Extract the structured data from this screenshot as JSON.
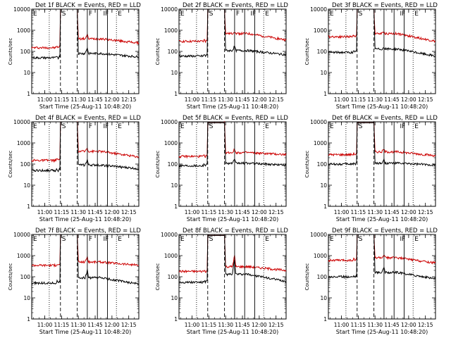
{
  "chart_data": [
    {
      "type": "line",
      "title": "Det 1f BLACK = Events, RED = LLD",
      "xlabel": "Start Time (25-Aug-11 10:48:20)",
      "ylabel": "Counts/sec",
      "xlim": [
        "10:48:20",
        "12:24"
      ],
      "ylim": [
        1,
        10000
      ],
      "yscale": "log",
      "x_ticks": [
        "11:00",
        "11:15",
        "11:30",
        "11:45",
        "12:00",
        "12:15"
      ],
      "y_ticks": [
        "1",
        "10",
        "100",
        "1000",
        "10000"
      ],
      "markers": [
        {
          "time": "11:04",
          "label": "",
          "style": "dotted"
        },
        {
          "time": "11:14",
          "label": "S",
          "style": "dashed"
        },
        {
          "time": "11:29",
          "label": "",
          "style": "dashed"
        },
        {
          "time": "11:38",
          "label": "F",
          "style": "solid"
        },
        {
          "time": "11:47",
          "label": "",
          "style": "solid"
        },
        {
          "time": "11:56",
          "label": "E",
          "style": "solid"
        },
        {
          "time": "12:04",
          "label": "",
          "style": "dotted"
        }
      ],
      "corner_labels": [
        "E",
        "S",
        "F",
        "IF",
        "E"
      ],
      "series": [
        {
          "name": "LLD",
          "color": "#cc0000",
          "levels": {
            "base": 150,
            "pre": 180,
            "sat": 10000,
            "post": 400,
            "end": 250,
            "spike": 600
          }
        },
        {
          "name": "Events",
          "color": "#000000",
          "levels": {
            "base": 50,
            "pre": 60,
            "sat": 10000,
            "post": 80,
            "end": 55,
            "spike": 150
          }
        }
      ]
    },
    {
      "type": "line",
      "title": "Det 2f BLACK = Events, RED = LLD",
      "xlabel": "Start Time (25-Aug-11 10:48:20)",
      "ylabel": "Counts/sec",
      "xlim": [
        "10:48:20",
        "12:24"
      ],
      "ylim": [
        1,
        10000
      ],
      "yscale": "log",
      "x_ticks": [
        "11:00",
        "11:15",
        "11:30",
        "11:45",
        "12:00",
        "12:15"
      ],
      "y_ticks": [
        "1",
        "10",
        "100",
        "1000",
        "10000"
      ],
      "markers": [
        {
          "time": "11:04",
          "label": "",
          "style": "dotted"
        },
        {
          "time": "11:14",
          "label": "S",
          "style": "dashed"
        },
        {
          "time": "11:29",
          "label": "",
          "style": "dashed"
        },
        {
          "time": "11:38",
          "label": "F",
          "style": "solid"
        },
        {
          "time": "11:47",
          "label": "",
          "style": "solid"
        },
        {
          "time": "11:56",
          "label": "E",
          "style": "solid"
        },
        {
          "time": "12:04",
          "label": "",
          "style": "dotted"
        }
      ],
      "corner_labels": [
        "E",
        "S",
        "F",
        "IF",
        "E"
      ],
      "series": [
        {
          "name": "LLD",
          "color": "#cc0000",
          "levels": {
            "base": 300,
            "pre": 350,
            "sat": 10000,
            "post": 700,
            "end": 350,
            "spike": 900
          }
        },
        {
          "name": "Events",
          "color": "#000000",
          "levels": {
            "base": 60,
            "pre": 70,
            "sat": 10000,
            "post": 110,
            "end": 70,
            "spike": 180
          }
        }
      ]
    },
    {
      "type": "line",
      "title": "Det 3f BLACK = Events, RED = LLD",
      "xlabel": "Start Time (25-Aug-11 10:48:20)",
      "ylabel": "Counts/sec",
      "xlim": [
        "10:48:20",
        "12:24"
      ],
      "ylim": [
        1,
        10000
      ],
      "yscale": "log",
      "x_ticks": [
        "11:00",
        "11:15",
        "11:30",
        "11:45",
        "12:00",
        "12:15"
      ],
      "y_ticks": [
        "1",
        "10",
        "100",
        "1000",
        "10000"
      ],
      "markers": [
        {
          "time": "11:04",
          "label": "",
          "style": "dotted"
        },
        {
          "time": "11:14",
          "label": "S",
          "style": "dashed"
        },
        {
          "time": "11:29",
          "label": "",
          "style": "dashed"
        },
        {
          "time": "11:38",
          "label": "",
          "style": "solid"
        },
        {
          "time": "11:47",
          "label": "",
          "style": "solid"
        },
        {
          "time": "11:56",
          "label": "E",
          "style": "solid"
        },
        {
          "time": "12:04",
          "label": "",
          "style": "dotted"
        }
      ],
      "corner_labels": [
        "E",
        "S",
        "",
        "IF",
        "E"
      ],
      "series": [
        {
          "name": "LLD",
          "color": "#cc0000",
          "levels": {
            "base": 500,
            "pre": 600,
            "sat": 10000,
            "post": 700,
            "end": 300,
            "spike": 800
          }
        },
        {
          "name": "Events",
          "color": "#000000",
          "levels": {
            "base": 90,
            "pre": 100,
            "sat": 10000,
            "post": 130,
            "end": 60,
            "spike": 150
          }
        }
      ]
    },
    {
      "type": "line",
      "title": "Det 4f BLACK = Events, RED = LLD",
      "xlabel": "Start Time (25-Aug-11 10:48:20)",
      "ylabel": "Counts/sec",
      "xlim": [
        "10:48:20",
        "12:24"
      ],
      "ylim": [
        1,
        10000
      ],
      "yscale": "log",
      "x_ticks": [
        "11:00",
        "11:15",
        "11:30",
        "11:45",
        "12:00",
        "12:15"
      ],
      "y_ticks": [
        "1",
        "10",
        "100",
        "1000",
        "10000"
      ],
      "markers": [
        {
          "time": "11:04",
          "label": "",
          "style": "dotted"
        },
        {
          "time": "11:14",
          "label": "S",
          "style": "dashed"
        },
        {
          "time": "11:29",
          "label": "",
          "style": "dashed"
        },
        {
          "time": "11:38",
          "label": "F",
          "style": "solid"
        },
        {
          "time": "11:47",
          "label": "",
          "style": "solid"
        },
        {
          "time": "11:56",
          "label": "E",
          "style": "solid"
        },
        {
          "time": "12:04",
          "label": "",
          "style": "dotted"
        }
      ],
      "corner_labels": [
        "E",
        "S",
        "F",
        "IF",
        "E"
      ],
      "series": [
        {
          "name": "LLD",
          "color": "#cc0000",
          "levels": {
            "base": 150,
            "pre": 180,
            "sat": 10000,
            "post": 400,
            "end": 220,
            "spike": 600
          }
        },
        {
          "name": "Events",
          "color": "#000000",
          "levels": {
            "base": 50,
            "pre": 60,
            "sat": 10000,
            "post": 90,
            "end": 60,
            "spike": 160
          }
        }
      ]
    },
    {
      "type": "line",
      "title": "Det 5f BLACK = Events, RED = LLD",
      "xlabel": "Start Time (25-Aug-11 10:48:20)",
      "ylabel": "Counts/sec",
      "xlim": [
        "10:48:20",
        "12:24"
      ],
      "ylim": [
        1,
        10000
      ],
      "yscale": "log",
      "x_ticks": [
        "11:00",
        "11:15",
        "11:30",
        "11:45",
        "12:00",
        "12:15"
      ],
      "y_ticks": [
        "1",
        "10",
        "100",
        "1000",
        "10000"
      ],
      "markers": [
        {
          "time": "11:04",
          "label": "",
          "style": "dotted"
        },
        {
          "time": "11:14",
          "label": "S",
          "style": "dashed"
        },
        {
          "time": "11:29",
          "label": "",
          "style": "dashed"
        },
        {
          "time": "11:38",
          "label": "",
          "style": "solid"
        },
        {
          "time": "11:47",
          "label": "",
          "style": "solid"
        },
        {
          "time": "11:56",
          "label": "E",
          "style": "solid"
        },
        {
          "time": "12:04",
          "label": "",
          "style": "dotted"
        }
      ],
      "corner_labels": [
        "E",
        "S",
        "",
        "",
        "E"
      ],
      "series": [
        {
          "name": "LLD",
          "color": "#cc0000",
          "levels": {
            "base": 230,
            "pre": 260,
            "sat": 9000,
            "post": 350,
            "end": 280,
            "spike": 500
          }
        },
        {
          "name": "Events",
          "color": "#000000",
          "levels": {
            "base": 85,
            "pre": 100,
            "sat": 9000,
            "post": 110,
            "end": 90,
            "spike": 160
          }
        }
      ]
    },
    {
      "type": "line",
      "title": "Det 6f BLACK = Events, RED = LLD",
      "xlabel": "Start Time (25-Aug-11 10:48:20)",
      "ylabel": "Counts/sec",
      "xlim": [
        "10:48:20",
        "12:24"
      ],
      "ylim": [
        1,
        10000
      ],
      "yscale": "log",
      "x_ticks": [
        "11:00",
        "11:15",
        "11:30",
        "11:45",
        "12:00",
        "12:15"
      ],
      "y_ticks": [
        "1",
        "10",
        "100",
        "1000",
        "10000"
      ],
      "markers": [
        {
          "time": "11:04",
          "label": "",
          "style": "dotted"
        },
        {
          "time": "11:14",
          "label": "S",
          "style": "dashed"
        },
        {
          "time": "11:29",
          "label": "",
          "style": "dashed"
        },
        {
          "time": "11:38",
          "label": "",
          "style": "solid"
        },
        {
          "time": "11:47",
          "label": "",
          "style": "solid"
        },
        {
          "time": "11:56",
          "label": "E",
          "style": "solid"
        },
        {
          "time": "12:04",
          "label": "",
          "style": "dotted"
        }
      ],
      "corner_labels": [
        "E",
        "S",
        "",
        "IF",
        "E"
      ],
      "series": [
        {
          "name": "LLD",
          "color": "#cc0000",
          "levels": {
            "base": 280,
            "pre": 320,
            "sat": 9000,
            "post": 380,
            "end": 250,
            "spike": 500
          }
        },
        {
          "name": "Events",
          "color": "#000000",
          "levels": {
            "base": 100,
            "pre": 110,
            "sat": 9000,
            "post": 110,
            "end": 90,
            "spike": 160
          }
        }
      ]
    },
    {
      "type": "line",
      "title": "Det 7f BLACK = Events, RED = LLD",
      "xlabel": "Start Time (25-Aug-11 10:48:20)",
      "ylabel": "Counts/sec",
      "xlim": [
        "10:48:20",
        "12:24"
      ],
      "ylim": [
        1,
        10000
      ],
      "yscale": "log",
      "x_ticks": [
        "11:00",
        "11:15",
        "11:30",
        "11:45",
        "12:00",
        "12:15"
      ],
      "y_ticks": [
        "1",
        "10",
        "100",
        "1000",
        "10000"
      ],
      "markers": [
        {
          "time": "11:04",
          "label": "",
          "style": "dotted"
        },
        {
          "time": "11:14",
          "label": "S",
          "style": "dashed"
        },
        {
          "time": "11:29",
          "label": "",
          "style": "dashed"
        },
        {
          "time": "11:38",
          "label": "F",
          "style": "solid"
        },
        {
          "time": "11:47",
          "label": "",
          "style": "solid"
        },
        {
          "time": "11:56",
          "label": "E",
          "style": "solid"
        },
        {
          "time": "12:04",
          "label": "",
          "style": "dotted"
        }
      ],
      "corner_labels": [
        "E",
        "S",
        "F",
        "IF",
        "E"
      ],
      "series": [
        {
          "name": "LLD",
          "color": "#cc0000",
          "levels": {
            "base": 350,
            "pre": 400,
            "sat": 10000,
            "post": 500,
            "end": 350,
            "spike": 900
          }
        },
        {
          "name": "Events",
          "color": "#000000",
          "levels": {
            "base": 50,
            "pre": 60,
            "sat": 10000,
            "post": 90,
            "end": 45,
            "spike": 200
          }
        }
      ]
    },
    {
      "type": "line",
      "title": "Det 8f BLACK = Events, RED = LLD",
      "xlabel": "Start Time (25-Aug-11 10:48:20)",
      "ylabel": "Counts/sec",
      "xlim": [
        "10:48:20",
        "12:24"
      ],
      "ylim": [
        1,
        10000
      ],
      "yscale": "log",
      "x_ticks": [
        "11:00",
        "11:15",
        "11:30",
        "11:45",
        "12:00",
        "12:15"
      ],
      "y_ticks": [
        "1",
        "10",
        "100",
        "1000",
        "10000"
      ],
      "markers": [
        {
          "time": "11:04",
          "label": "",
          "style": "dotted"
        },
        {
          "time": "11:14",
          "label": "S",
          "style": "dashed"
        },
        {
          "time": "11:29",
          "label": "",
          "style": "dashed"
        },
        {
          "time": "11:38",
          "label": "",
          "style": "solid"
        },
        {
          "time": "11:47",
          "label": "",
          "style": "solid"
        },
        {
          "time": "11:56",
          "label": "E",
          "style": "solid"
        },
        {
          "time": "12:04",
          "label": "",
          "style": "dotted"
        }
      ],
      "corner_labels": [
        "E",
        "S",
        "",
        "",
        "E"
      ],
      "series": [
        {
          "name": "LLD",
          "color": "#cc0000",
          "levels": {
            "base": 180,
            "pre": 200,
            "sat": 9000,
            "post": 300,
            "end": 200,
            "spike": 1000
          }
        },
        {
          "name": "Events",
          "color": "#000000",
          "levels": {
            "base": 55,
            "pre": 65,
            "sat": 9000,
            "post": 130,
            "end": 60,
            "spike": 700
          }
        }
      ]
    },
    {
      "type": "line",
      "title": "Det 9f BLACK = Events, RED = LLD",
      "xlabel": "Start Time (25-Aug-11 10:48:20)",
      "ylabel": "Counts/sec",
      "xlim": [
        "10:48:20",
        "12:24"
      ],
      "ylim": [
        1,
        10000
      ],
      "yscale": "log",
      "x_ticks": [
        "11:00",
        "11:15",
        "11:30",
        "11:45",
        "12:00",
        "12:15"
      ],
      "y_ticks": [
        "1",
        "10",
        "100",
        "1000",
        "10000"
      ],
      "markers": [
        {
          "time": "11:04",
          "label": "",
          "style": "dotted"
        },
        {
          "time": "11:14",
          "label": "S",
          "style": "dashed"
        },
        {
          "time": "11:29",
          "label": "",
          "style": "dashed"
        },
        {
          "time": "11:38",
          "label": "",
          "style": "solid"
        },
        {
          "time": "11:47",
          "label": "",
          "style": "solid"
        },
        {
          "time": "11:56",
          "label": "E",
          "style": "solid"
        },
        {
          "time": "12:04",
          "label": "",
          "style": "dotted"
        }
      ],
      "corner_labels": [
        "E",
        "S",
        "",
        "IF",
        "E"
      ],
      "series": [
        {
          "name": "LLD",
          "color": "#cc0000",
          "levels": {
            "base": 600,
            "pre": 700,
            "sat": 10000,
            "post": 800,
            "end": 450,
            "spike": 1000
          }
        },
        {
          "name": "Events",
          "color": "#000000",
          "levels": {
            "base": 100,
            "pre": 110,
            "sat": 10000,
            "post": 160,
            "end": 80,
            "spike": 300
          }
        }
      ]
    }
  ]
}
